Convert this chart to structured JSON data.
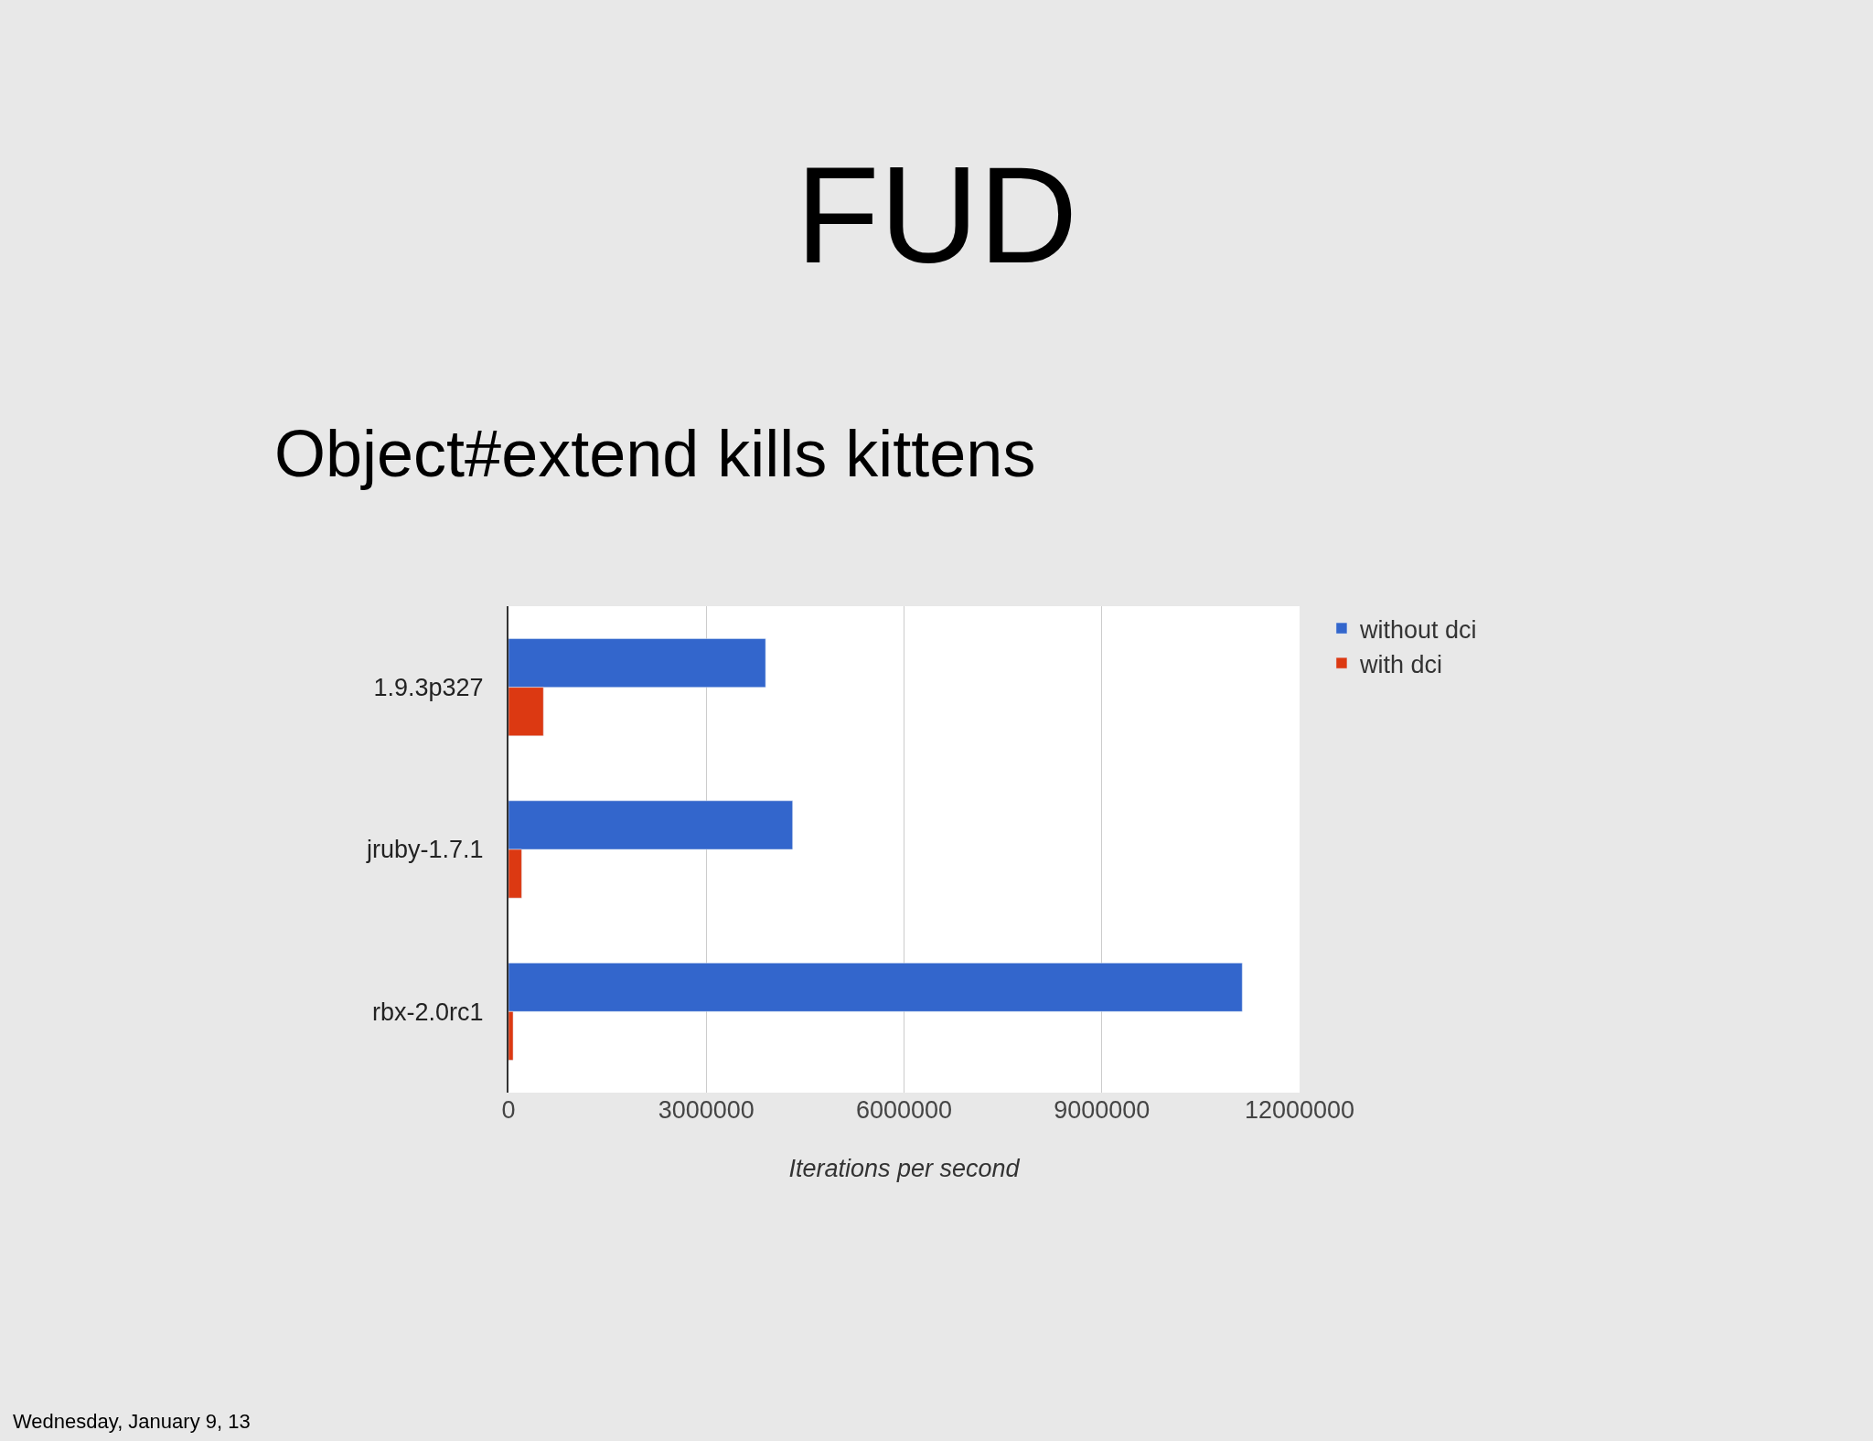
{
  "chart_data": {
    "type": "bar",
    "orientation": "horizontal",
    "title": "FUD",
    "subtitle": "Object#extend kills kittens",
    "xlabel": "Iterations per second",
    "categories": [
      "1.9.3p327",
      "jruby-1.7.1",
      "rbx-2.0rc1"
    ],
    "series": [
      {
        "name": "without dci",
        "color": "#3366cc",
        "values": [
          3900000,
          4310000,
          11130000
        ]
      },
      {
        "name": "with dci",
        "color": "#dc3912",
        "values": [
          530000,
          200000,
          70000
        ]
      }
    ],
    "xlim": [
      0,
      12000000
    ],
    "xticks": [
      0,
      3000000,
      6000000,
      9000000,
      12000000
    ],
    "grid": "x",
    "legend": "top right",
    "annotations": [
      "Wednesday, January 9, 13"
    ]
  }
}
